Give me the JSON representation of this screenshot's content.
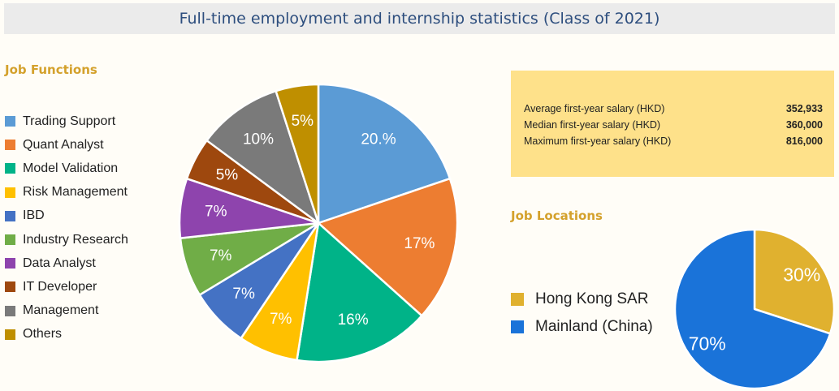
{
  "title": "Full-time employment and internship statistics (Class of 2021)",
  "job_functions_heading": "Job Functions",
  "job_locations_heading": "Job Locations",
  "salary": {
    "rows": [
      {
        "label": "Average first-year salary (HKD)",
        "value": "352,933"
      },
      {
        "label": "Median first-year salary (HKD)",
        "value": "360,000"
      },
      {
        "label": "Maximum first-year salary (HKD)",
        "value": "816,000"
      }
    ]
  },
  "colors": {
    "background": "#fffdf7",
    "title_bar": "#ebebeb",
    "title_text": "#2d4e7e",
    "heading": "#d4a12c",
    "salary_box": "#fee18a"
  },
  "chart_data": [
    {
      "type": "pie",
      "title": "Job Functions",
      "labels": [
        "Trading Support",
        "Quant Analyst",
        "Model Validation",
        "Risk Management",
        "IBD",
        "Industry Research",
        "Data Analyst",
        "IT Developer",
        "Management",
        "Others"
      ],
      "values": [
        20,
        17,
        16,
        7,
        7,
        7,
        7,
        5,
        10,
        5
      ],
      "data_labels": [
        "20.%",
        "17%",
        "16%",
        "7%",
        "7%",
        "7%",
        "7%",
        "5%",
        "10%",
        "5%"
      ],
      "colors": [
        "#5b9bd5",
        "#ed7d31",
        "#00b388",
        "#ffc000",
        "#4472c4",
        "#70ad47",
        "#8e44ad",
        "#9e480e",
        "#7a7a7a",
        "#bf8f00"
      ],
      "legend_position": "left"
    },
    {
      "type": "pie",
      "title": "Job Locations",
      "labels": [
        "Hong Kong SAR",
        "Mainland (China)"
      ],
      "values": [
        30,
        70
      ],
      "data_labels": [
        "30%",
        "70%"
      ],
      "colors": [
        "#e0b12f",
        "#1a73d9"
      ],
      "legend_position": "left"
    }
  ]
}
